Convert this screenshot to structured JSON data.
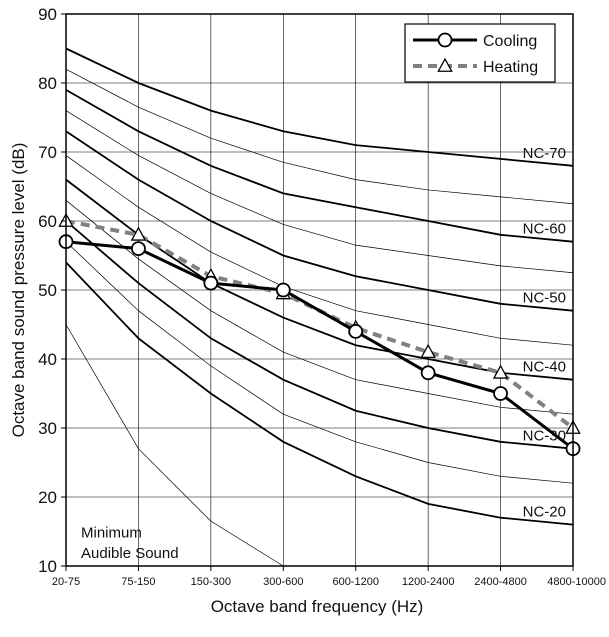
{
  "chart_data": {
    "type": "line",
    "xlabel": "Octave band frequency (Hz)",
    "ylabel": "Octave band sound pressure level (dB)",
    "categories": [
      "20-75",
      "75-150",
      "150-300",
      "300-600",
      "600-1200",
      "1200-2400",
      "2400-4800",
      "4800-10000"
    ],
    "ylim": [
      10,
      90
    ],
    "yticks": [
      10,
      20,
      30,
      40,
      50,
      60,
      70,
      80,
      90
    ],
    "grid": true,
    "legend_position": "top-right",
    "series": [
      {
        "name": "Cooling",
        "values": [
          57,
          56,
          51,
          50,
          44,
          38,
          35,
          27
        ],
        "color": "#000000",
        "marker": "circle",
        "style": "solid"
      },
      {
        "name": "Heating",
        "values": [
          60,
          58,
          52,
          49.5,
          44.5,
          41,
          38,
          30
        ],
        "color": "#808080",
        "marker": "triangle",
        "style": "dashed"
      }
    ],
    "nc_curves": [
      {
        "label": "NC-70",
        "values": [
          85,
          80,
          76,
          73,
          71,
          70,
          69,
          68
        ],
        "weight": "bold"
      },
      {
        "label": "",
        "values": [
          82,
          76.5,
          72,
          68.5,
          66,
          64.5,
          63.5,
          62.5
        ],
        "weight": "thin"
      },
      {
        "label": "NC-60",
        "values": [
          79,
          73,
          68,
          64,
          62,
          60,
          58,
          57
        ],
        "weight": "bold"
      },
      {
        "label": "",
        "values": [
          76,
          69.5,
          64,
          59.5,
          56.5,
          55,
          53.5,
          52.5
        ],
        "weight": "thin"
      },
      {
        "label": "NC-50",
        "values": [
          73,
          66,
          60,
          55,
          52,
          50,
          48,
          47
        ],
        "weight": "bold"
      },
      {
        "label": "",
        "values": [
          69.5,
          62,
          55.5,
          50.5,
          47,
          45,
          43,
          42
        ],
        "weight": "thin"
      },
      {
        "label": "NC-40",
        "values": [
          66,
          58,
          51,
          46,
          42,
          40,
          38,
          37
        ],
        "weight": "bold"
      },
      {
        "label": "",
        "values": [
          63,
          54.5,
          47,
          41,
          37,
          35,
          33,
          32
        ],
        "weight": "thin"
      },
      {
        "label": "NC-30",
        "values": [
          60,
          51,
          43,
          37,
          32.5,
          30,
          28,
          27
        ],
        "weight": "bold"
      },
      {
        "label": "",
        "values": [
          57,
          47,
          39,
          32,
          28,
          25,
          23,
          22
        ],
        "weight": "thin"
      },
      {
        "label": "NC-20",
        "values": [
          54,
          43,
          35,
          28,
          23,
          19,
          17,
          16
        ],
        "weight": "bold"
      },
      {
        "label": "",
        "values": [
          45,
          27,
          16.5,
          10
        ],
        "weight": "thin"
      }
    ],
    "annotations": [
      {
        "text": "Minimum",
        "x": 0.5,
        "y": 15
      },
      {
        "text": "Audible Sound",
        "x": 0.5,
        "y": 12
      }
    ]
  }
}
